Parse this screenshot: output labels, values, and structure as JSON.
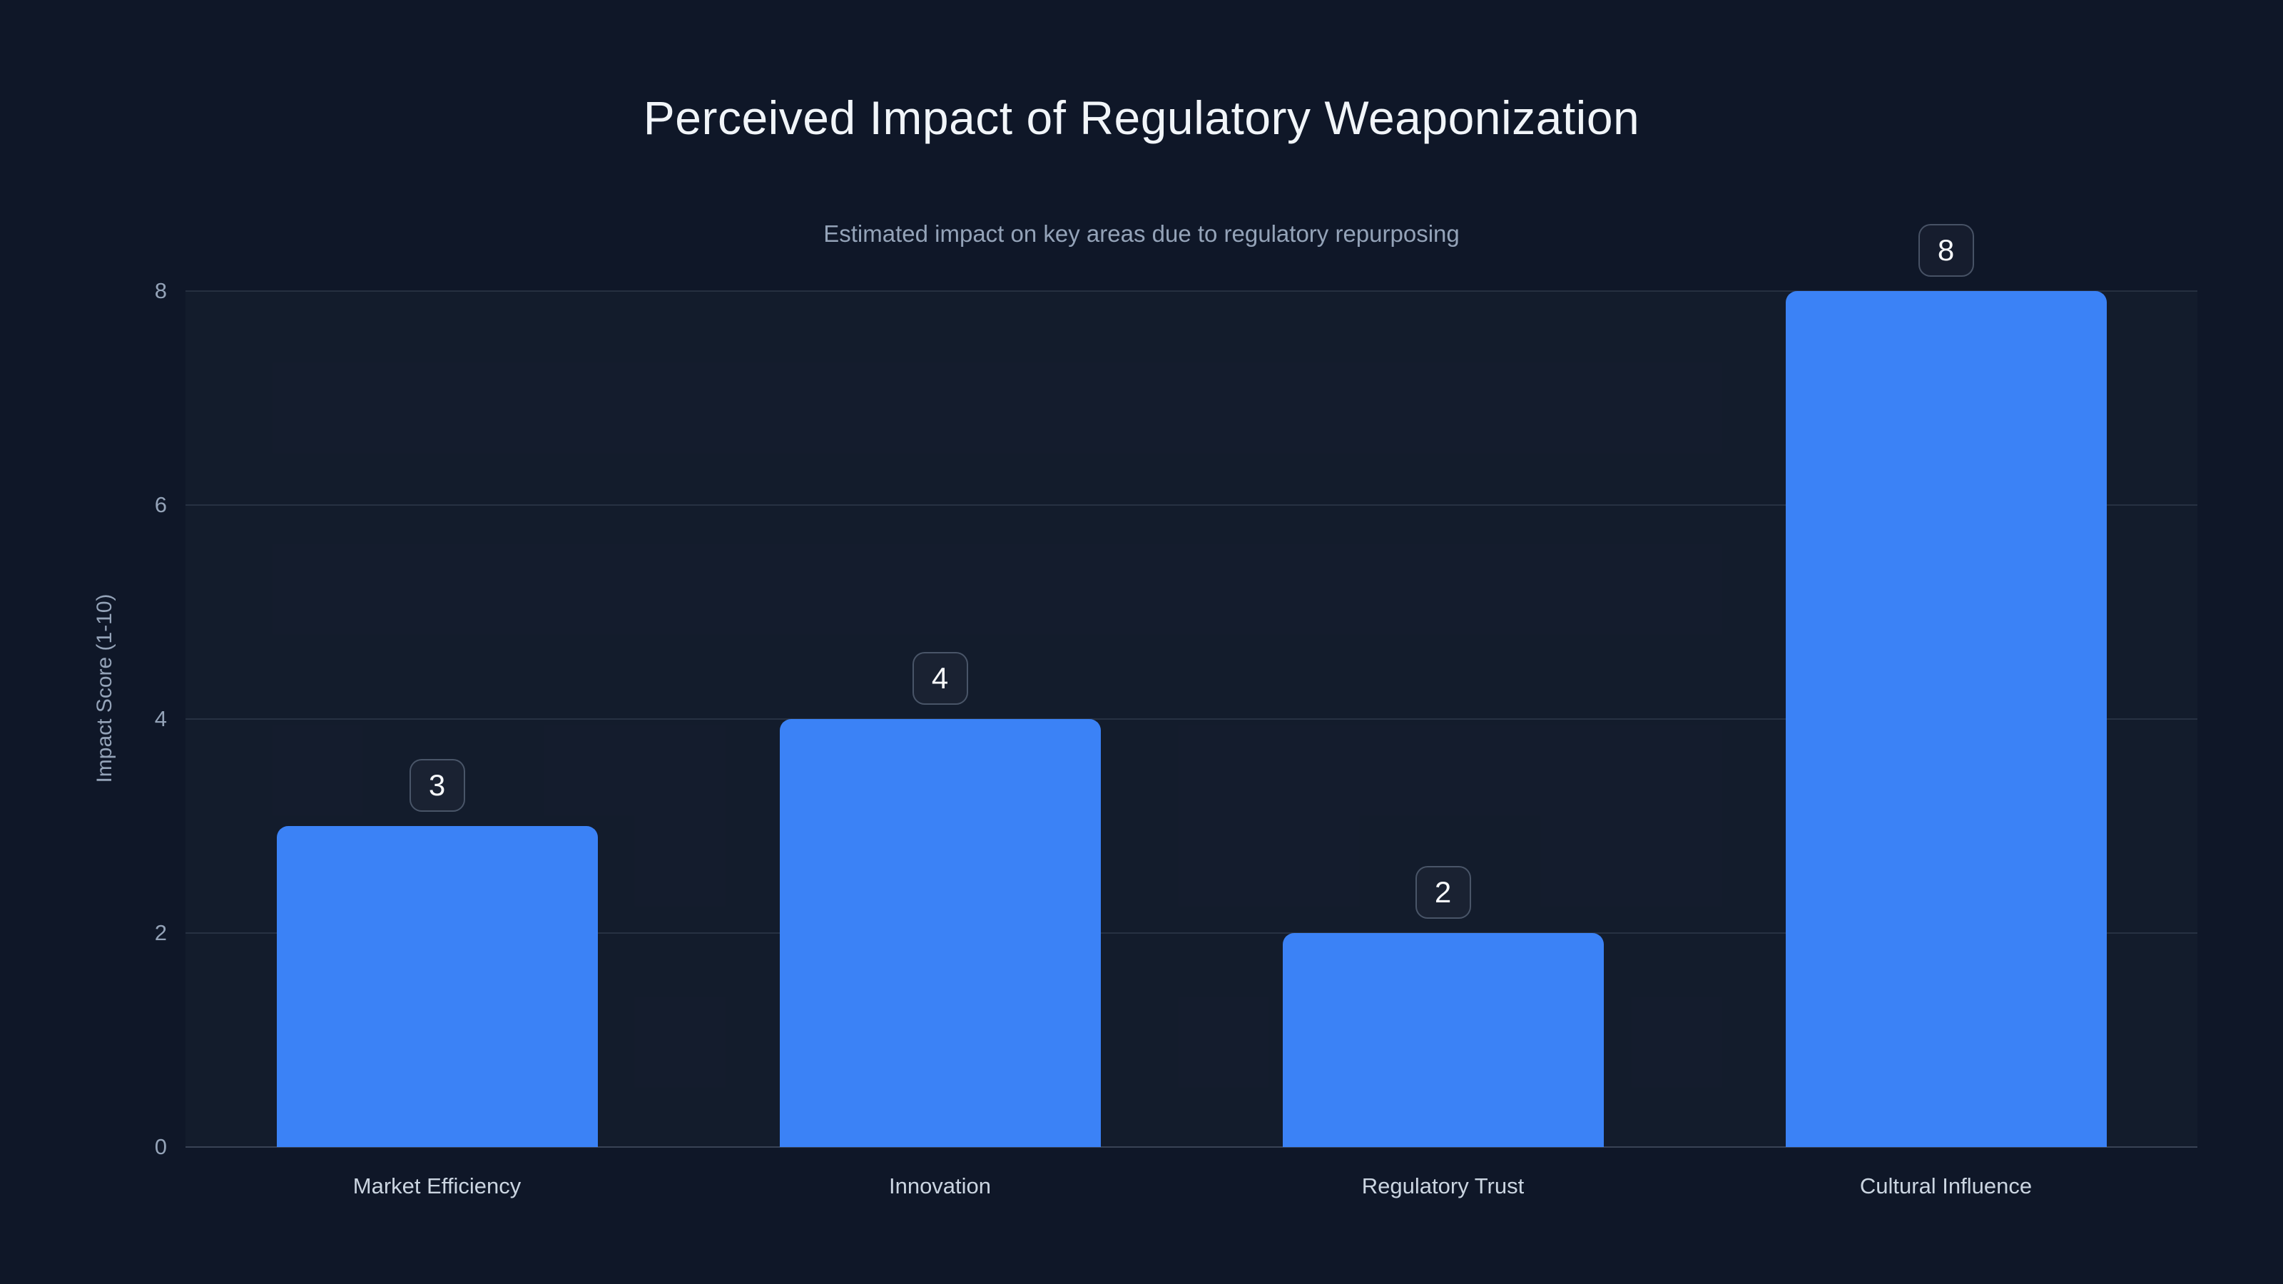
{
  "chart_data": {
    "type": "bar",
    "title": "Perceived Impact of Regulatory Weaponization",
    "subtitle": "Estimated impact on key areas due to regulatory repurposing",
    "xlabel": "",
    "ylabel": "Impact Score (1-10)",
    "categories": [
      "Market Efficiency",
      "Innovation",
      "Regulatory Trust",
      "Cultural Influence"
    ],
    "values": [
      3,
      4,
      2,
      8
    ],
    "data_labels": [
      "3",
      "4",
      "2",
      "8"
    ],
    "ylim": [
      0,
      8
    ],
    "yticks": [
      0,
      2,
      4,
      6,
      8
    ],
    "grid": "horizontal-only",
    "legend": "none",
    "colors": {
      "background": "#0f1728",
      "bar": "#3b82f6",
      "title_text": "#f1f5f9",
      "subtitle_text": "#94a3b8",
      "tick_text": "#94a3b8",
      "category_text": "#cbd5e1",
      "badge_text": "#f8fafc",
      "badge_border": "rgba(148,163,184,0.40)",
      "gridline": "rgba(148,163,184,0.16)"
    }
  }
}
